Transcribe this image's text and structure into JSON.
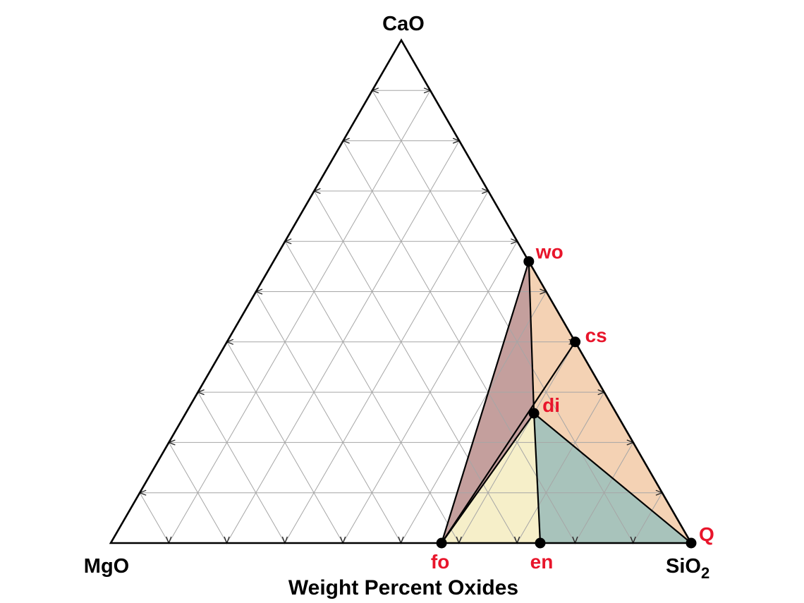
{
  "title": "Weight Percent Oxides",
  "components": {
    "top": "CaO",
    "left": "MgO",
    "right_main": "SiO",
    "right_sub": "2"
  },
  "grid": {
    "divisions": 10,
    "visible": true
  },
  "phases": [
    {
      "id": "cs",
      "label": "cs",
      "position": [
        0,
        4
      ]
    },
    {
      "id": "wo",
      "label": "wo",
      "position": [
        0,
        5.6
      ]
    },
    {
      "id": "di",
      "label": "di",
      "position": [
        1.42,
        2.58
      ]
    },
    {
      "id": "fo",
      "label": "fo",
      "position": [
        4.3,
        0
      ]
    },
    {
      "id": "en",
      "label": "en",
      "position": [
        2.6,
        0
      ]
    },
    {
      "id": "Q",
      "label": "Q",
      "position": [
        0,
        0
      ]
    }
  ],
  "fields": [
    {
      "id": "fo-cs-wo",
      "vertices": [
        "fo",
        "cs",
        "wo"
      ],
      "color": "#e0a3a3"
    },
    {
      "id": "fo-wo-di",
      "vertices": [
        "fo",
        "wo",
        "di"
      ],
      "color": "#c49f9d"
    },
    {
      "id": "fo-di-en",
      "vertices": [
        "fo",
        "di",
        "en"
      ],
      "color": "#f6efc9"
    },
    {
      "id": "en-di-Q",
      "vertices": [
        "en",
        "di",
        "Q"
      ],
      "color": "#a8c3bb"
    },
    {
      "id": "wo-Q-di",
      "vertices": [
        "wo",
        "Q",
        "di"
      ],
      "color": "#f4d2b4"
    }
  ],
  "tie_lines": [
    [
      "cs",
      "fo"
    ],
    [
      "wo",
      "fo"
    ],
    [
      "wo",
      "di"
    ],
    [
      "di",
      "fo"
    ],
    [
      "di",
      "en"
    ],
    [
      "di",
      "Q"
    ]
  ],
  "colors": {
    "phase_label": "#e8152b",
    "outline": "#000000",
    "grid": "#a6a6a6"
  }
}
